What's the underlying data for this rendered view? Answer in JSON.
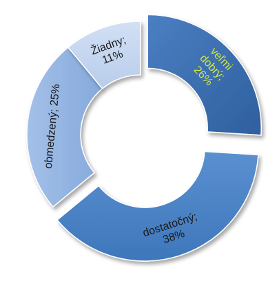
{
  "chart_data": {
    "type": "pie",
    "variant": "exploded-doughnut",
    "title": "",
    "legend": "none",
    "start_angle_deg": 0,
    "direction": "clockwise",
    "slices": [
      {
        "category": "veľmi dobrý",
        "value": 26,
        "value_label": "26%",
        "color": "#3c6eb0",
        "label_color": "#d4e83a",
        "label_lines": [
          "veľmi",
          "dobrý;",
          "26%"
        ]
      },
      {
        "category": "dostatočný",
        "value": 38,
        "value_label": "38%",
        "color": "#4a82c6",
        "label_color": "#1a1a1a",
        "label_lines": [
          "dostatočný;",
          "38%"
        ]
      },
      {
        "category": "obmedzený",
        "value": 25,
        "value_label": "25%",
        "color": "#93b4e2",
        "label_color": "#1a1a1a",
        "label_lines": [
          "obmedzený; 25%"
        ]
      },
      {
        "category": "žiadny",
        "value": 11,
        "value_label": "11%",
        "color": "#c3d4ee",
        "label_color": "#1a1a1a",
        "label_lines": [
          "Žiadny;",
          "11%"
        ]
      }
    ]
  }
}
